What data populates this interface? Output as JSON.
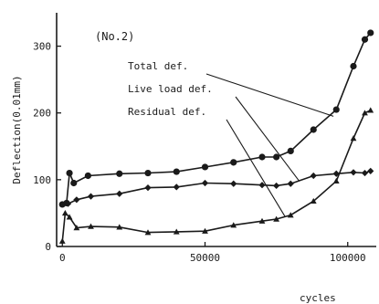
{
  "chart_data": {
    "type": "line",
    "annotation": "(No.2)",
    "xlabel": "cycles",
    "ylabel": "Deflection(0.01mm)",
    "xlim": [
      -2000,
      110000
    ],
    "ylim": [
      0,
      350
    ],
    "x_ticks": [
      0,
      50000,
      100000
    ],
    "y_ticks": [
      0,
      100,
      200,
      300
    ],
    "x_tick_labels": [
      "0",
      "50000",
      "100000"
    ],
    "y_tick_labels": [
      "0",
      "100",
      "200",
      "300"
    ],
    "grid": false,
    "series": [
      {
        "name": "Total def.",
        "marker": "circle",
        "points": [
          [
            0,
            63
          ],
          [
            1500,
            65
          ],
          [
            2500,
            110
          ],
          [
            4000,
            95
          ],
          [
            9000,
            106
          ],
          [
            20000,
            109
          ],
          [
            30000,
            110
          ],
          [
            40000,
            112
          ],
          [
            50000,
            119
          ],
          [
            60000,
            126
          ],
          [
            70000,
            134
          ],
          [
            75000,
            134
          ],
          [
            80000,
            143
          ],
          [
            88000,
            175
          ],
          [
            96000,
            205
          ],
          [
            102000,
            270
          ],
          [
            106000,
            310
          ],
          [
            108000,
            320
          ]
        ]
      },
      {
        "name": "Live load def.",
        "marker": "diamond",
        "points": [
          [
            0,
            63
          ],
          [
            2000,
            64
          ],
          [
            5000,
            70
          ],
          [
            10000,
            75
          ],
          [
            20000,
            79
          ],
          [
            30000,
            88
          ],
          [
            40000,
            89
          ],
          [
            50000,
            95
          ],
          [
            60000,
            94
          ],
          [
            70000,
            92
          ],
          [
            75000,
            91
          ],
          [
            80000,
            94
          ],
          [
            88000,
            106
          ],
          [
            96000,
            109
          ],
          [
            102000,
            111
          ],
          [
            106000,
            110
          ],
          [
            108000,
            113
          ]
        ]
      },
      {
        "name": "Residual def.",
        "marker": "triangle",
        "points": [
          [
            0,
            8
          ],
          [
            1000,
            50
          ],
          [
            2500,
            44
          ],
          [
            5000,
            28
          ],
          [
            10000,
            30
          ],
          [
            20000,
            29
          ],
          [
            30000,
            21
          ],
          [
            40000,
            22
          ],
          [
            50000,
            23
          ],
          [
            60000,
            32
          ],
          [
            70000,
            38
          ],
          [
            75000,
            41
          ],
          [
            80000,
            47
          ],
          [
            88000,
            68
          ],
          [
            96000,
            98
          ],
          [
            102000,
            162
          ],
          [
            106000,
            200
          ],
          [
            108000,
            204
          ]
        ]
      }
    ]
  }
}
